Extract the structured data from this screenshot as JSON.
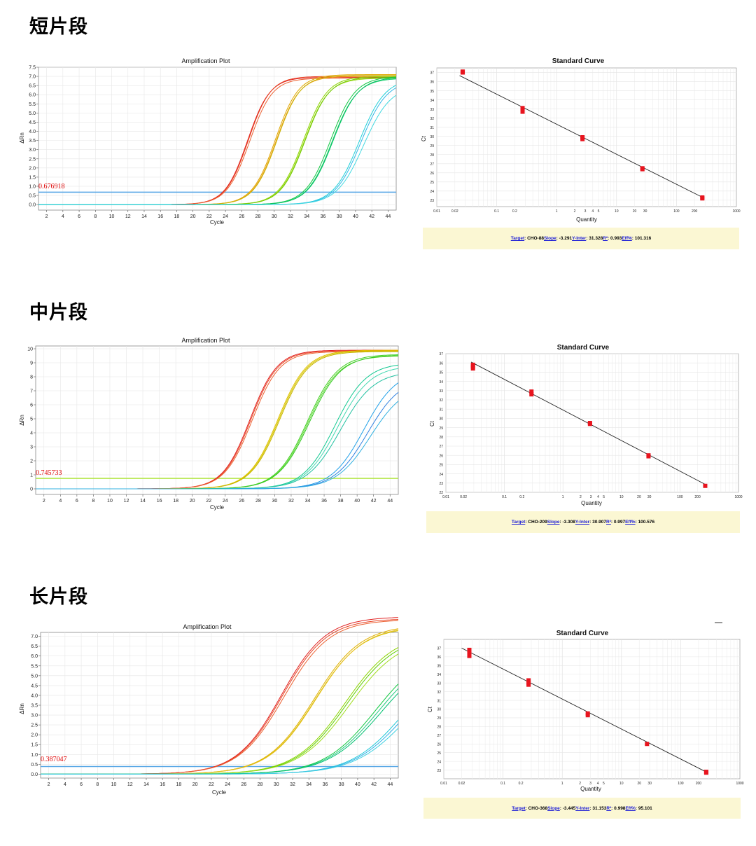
{
  "panels": [
    {
      "section_title": "短片段",
      "amp_title": "Amplification Plot",
      "amp_xlabel": "Cycle",
      "amp_ylabel": "ΔRn",
      "threshold_label": "0.676918",
      "std_title": "Standard Curve",
      "std_xlabel": "Quantity",
      "std_ylabel": "Ct",
      "stats": {
        "target_label": "Target",
        "target": "CHO-88",
        "slope_label": "Slope",
        "slope": "-3.291",
        "yinter_label": "Y-Inter",
        "yinter": "31.328",
        "r2_label": "R²",
        "r2": "0.993",
        "eff_label": "Eff%",
        "eff": "101.316"
      }
    },
    {
      "section_title": "中片段",
      "amp_title": "Amplification Plot",
      "amp_xlabel": "Cycle",
      "amp_ylabel": "ΔRn",
      "threshold_label": "0.745733",
      "std_title": "Standard Curve",
      "std_xlabel": "Quantity",
      "std_ylabel": "Ct",
      "stats": {
        "target_label": "Target",
        "target": "CHO-209",
        "slope_label": "Slope",
        "slope": "-3.308",
        "yinter_label": "Y-Inter",
        "yinter": "30.907",
        "r2_label": "R²",
        "r2": "0.997",
        "eff_label": "Eff%",
        "eff": "100.576"
      }
    },
    {
      "section_title": "长片段",
      "amp_title": "Amplification Plot",
      "amp_xlabel": "Cycle",
      "amp_ylabel": "ΔRn",
      "threshold_label": "0.387047",
      "std_title": "Standard Curve",
      "std_xlabel": "Quantity",
      "std_ylabel": "Ct",
      "stats": {
        "target_label": "Target",
        "target": "CHO-368",
        "slope_label": "Slope",
        "slope": "-3.445",
        "yinter_label": "Y-Inter",
        "yinter": "31.153",
        "r2_label": "R²",
        "r2": "0.998",
        "eff_label": "Eff%",
        "eff": "95.101"
      }
    }
  ],
  "chart_data": [
    {
      "type": "line",
      "title": "Amplification Plot",
      "xlabel": "Cycle",
      "ylabel": "ΔRn",
      "xlim": [
        1,
        45
      ],
      "ylim": [
        -0.3,
        7.5
      ],
      "xticks": [
        2,
        4,
        6,
        8,
        10,
        12,
        14,
        16,
        18,
        20,
        22,
        24,
        26,
        28,
        30,
        32,
        34,
        36,
        38,
        40,
        42,
        44
      ],
      "yticks": [
        0.0,
        0.5,
        1.0,
        1.5,
        2.0,
        2.5,
        3.0,
        3.5,
        4.0,
        4.5,
        5.0,
        5.5,
        6.0,
        6.5,
        7.0,
        7.5
      ],
      "ytick_decimals": 1,
      "threshold": 0.676918,
      "threshold_color": "#5aa8e6",
      "grid": true,
      "series": [
        {
          "color": "#e02020",
          "ct": 23.2,
          "slope": 2.5,
          "plateau": 6.95
        },
        {
          "color": "#e84020",
          "ct": 23.3,
          "slope": 2.5,
          "plateau": 7.0
        },
        {
          "color": "#ec6030",
          "ct": 23.4,
          "slope": 2.55,
          "plateau": 6.9
        },
        {
          "color": "#e0a800",
          "ct": 26.5,
          "slope": 2.6,
          "plateau": 7.1
        },
        {
          "color": "#f0a020",
          "ct": 26.6,
          "slope": 2.6,
          "plateau": 7.0
        },
        {
          "color": "#c8b400",
          "ct": 26.7,
          "slope": 2.6,
          "plateau": 7.05
        },
        {
          "color": "#8cd400",
          "ct": 29.8,
          "slope": 2.7,
          "plateau": 7.0
        },
        {
          "color": "#a0dc20",
          "ct": 29.9,
          "slope": 2.7,
          "plateau": 6.9
        },
        {
          "color": "#70c800",
          "ct": 30.0,
          "slope": 2.7,
          "plateau": 6.95
        },
        {
          "color": "#10c840",
          "ct": 33.0,
          "slope": 2.8,
          "plateau": 7.0
        },
        {
          "color": "#20d070",
          "ct": 33.2,
          "slope": 2.8,
          "plateau": 6.9
        },
        {
          "color": "#00c060",
          "ct": 33.3,
          "slope": 2.8,
          "plateau": 6.95
        },
        {
          "color": "#20d0d8",
          "ct": 36.4,
          "slope": 2.9,
          "plateau": 6.9
        },
        {
          "color": "#30b8e8",
          "ct": 36.6,
          "slope": 2.9,
          "plateau": 6.8
        },
        {
          "color": "#40d8e0",
          "ct": 36.8,
          "slope": 3.0,
          "plateau": 6.5
        }
      ]
    },
    {
      "type": "scatter",
      "title": "Standard Curve",
      "xlabel": "Quantity",
      "ylabel": "Ct",
      "xscale": "log",
      "xlim": [
        0.01,
        1000
      ],
      "ylim": [
        22.3,
        37.5
      ],
      "xtick_labels": [
        "0.01",
        "0.02",
        "0.1",
        "0.2",
        "1",
        "2",
        "3",
        "4",
        "5",
        "10",
        "20",
        "30",
        "100",
        "200",
        "1000"
      ],
      "xtick_values": [
        0.01,
        0.02,
        0.1,
        0.2,
        1,
        2,
        3,
        4,
        5,
        10,
        20,
        30,
        100,
        200,
        1000
      ],
      "yticks": [
        23,
        24,
        25,
        26,
        27,
        28,
        29,
        30,
        31,
        32,
        33,
        34,
        35,
        36,
        37
      ],
      "fit": {
        "slope": -3.291,
        "intercept": 31.328,
        "x_range": [
          0.024,
          270
        ]
      },
      "points": [
        {
          "x": 0.027,
          "y": 37.0
        },
        {
          "x": 0.027,
          "y": 37.1
        },
        {
          "x": 0.27,
          "y": 33.0
        },
        {
          "x": 0.27,
          "y": 32.7
        },
        {
          "x": 0.27,
          "y": 33.1
        },
        {
          "x": 2.7,
          "y": 29.7
        },
        {
          "x": 2.7,
          "y": 29.9
        },
        {
          "x": 27,
          "y": 26.4
        },
        {
          "x": 27,
          "y": 26.5
        },
        {
          "x": 270,
          "y": 23.2
        },
        {
          "x": 270,
          "y": 23.3
        }
      ]
    },
    {
      "type": "line",
      "title": "Amplification Plot",
      "xlabel": "Cycle",
      "ylabel": "ΔRn",
      "xlim": [
        1,
        45
      ],
      "ylim": [
        -0.4,
        10.2
      ],
      "xticks": [
        2,
        4,
        6,
        8,
        10,
        12,
        14,
        16,
        18,
        20,
        22,
        24,
        26,
        28,
        30,
        32,
        34,
        36,
        38,
        40,
        42,
        44
      ],
      "yticks": [
        0,
        1,
        2,
        3,
        4,
        5,
        6,
        7,
        8,
        9,
        10
      ],
      "ytick_decimals": 0,
      "threshold": 0.745733,
      "threshold_color": "#b4e64a",
      "grid": true,
      "series": [
        {
          "color": "#e02020",
          "ct": 22.8,
          "slope": 3.0,
          "plateau": 9.9
        },
        {
          "color": "#e84020",
          "ct": 22.9,
          "slope": 3.0,
          "plateau": 9.85
        },
        {
          "color": "#ec6030",
          "ct": 23.0,
          "slope": 3.05,
          "plateau": 9.8
        },
        {
          "color": "#e0c000",
          "ct": 25.9,
          "slope": 3.2,
          "plateau": 9.9
        },
        {
          "color": "#d4c800",
          "ct": 26.0,
          "slope": 3.2,
          "plateau": 9.85
        },
        {
          "color": "#c8b400",
          "ct": 26.1,
          "slope": 3.2,
          "plateau": 9.8
        },
        {
          "color": "#40d020",
          "ct": 29.2,
          "slope": 3.4,
          "plateau": 9.6
        },
        {
          "color": "#60d830",
          "ct": 29.3,
          "slope": 3.4,
          "plateau": 9.5
        },
        {
          "color": "#30c820",
          "ct": 29.4,
          "slope": 3.45,
          "plateau": 9.55
        },
        {
          "color": "#10c890",
          "ct": 32.4,
          "slope": 3.5,
          "plateau": 9.0
        },
        {
          "color": "#40d8b0",
          "ct": 32.6,
          "slope": 3.6,
          "plateau": 8.8
        },
        {
          "color": "#20c0a0",
          "ct": 32.8,
          "slope": 3.7,
          "plateau": 8.4
        },
        {
          "color": "#20a0e8",
          "ct": 35.8,
          "slope": 3.6,
          "plateau": 8.5
        },
        {
          "color": "#3080e0",
          "ct": 36.1,
          "slope": 3.7,
          "plateau": 8.0
        },
        {
          "color": "#30b0e0",
          "ct": 36.3,
          "slope": 3.8,
          "plateau": 7.5
        }
      ]
    },
    {
      "type": "scatter",
      "title": "Standard Curve",
      "xlabel": "Quantity",
      "ylabel": "Ct",
      "xscale": "log",
      "xlim": [
        0.01,
        1000
      ],
      "ylim": [
        22,
        37
      ],
      "xtick_labels": [
        "0.01",
        "0.02",
        "0.1",
        "0.2",
        "1",
        "2",
        "3",
        "4",
        "5",
        "10",
        "20",
        "30",
        "100",
        "200",
        "1000"
      ],
      "xtick_values": [
        0.01,
        0.02,
        0.1,
        0.2,
        1,
        2,
        3,
        4,
        5,
        10,
        20,
        30,
        100,
        200,
        1000
      ],
      "yticks": [
        22,
        23,
        24,
        25,
        26,
        27,
        28,
        29,
        30,
        31,
        32,
        33,
        34,
        35,
        36,
        37
      ],
      "fit": {
        "slope": -3.308,
        "intercept": 30.907,
        "x_range": [
          0.027,
          270
        ]
      },
      "points": [
        {
          "x": 0.029,
          "y": 35.4
        },
        {
          "x": 0.029,
          "y": 35.6
        },
        {
          "x": 0.029,
          "y": 35.8
        },
        {
          "x": 0.29,
          "y": 32.6
        },
        {
          "x": 0.29,
          "y": 32.9
        },
        {
          "x": 2.9,
          "y": 29.4
        },
        {
          "x": 2.9,
          "y": 29.5
        },
        {
          "x": 29,
          "y": 25.9
        },
        {
          "x": 29,
          "y": 26.0
        },
        {
          "x": 270,
          "y": 22.7
        }
      ]
    },
    {
      "type": "line",
      "title": "Amplification Plot",
      "xlabel": "Cycle",
      "ylabel": "ΔRn",
      "xlim": [
        1,
        45
      ],
      "ylim": [
        -0.2,
        7.2
      ],
      "xticks": [
        2,
        4,
        6,
        8,
        10,
        12,
        14,
        16,
        18,
        20,
        22,
        24,
        26,
        28,
        30,
        32,
        34,
        36,
        38,
        40,
        42,
        44
      ],
      "yticks": [
        0.0,
        0.5,
        1.0,
        1.5,
        2.0,
        2.5,
        3.0,
        3.5,
        4.0,
        4.5,
        5.0,
        5.5,
        6.0,
        6.5,
        7.0
      ],
      "ytick_decimals": 1,
      "threshold": 0.387047,
      "threshold_color": "#5aa8e6",
      "grid": true,
      "series": [
        {
          "color": "#e02020",
          "ct": 23.6,
          "slope": 5.0,
          "plateau": 8.0
        },
        {
          "color": "#e84020",
          "ct": 23.7,
          "slope": 5.0,
          "plateau": 7.9
        },
        {
          "color": "#ec6030",
          "ct": 23.8,
          "slope": 5.1,
          "plateau": 7.85
        },
        {
          "color": "#e0b000",
          "ct": 27.2,
          "slope": 5.3,
          "plateau": 7.6
        },
        {
          "color": "#d4c000",
          "ct": 27.3,
          "slope": 5.3,
          "plateau": 7.5
        },
        {
          "color": "#e8c020",
          "ct": 27.4,
          "slope": 5.3,
          "plateau": 7.55
        },
        {
          "color": "#8cd400",
          "ct": 30.6,
          "slope": 5.6,
          "plateau": 7.2
        },
        {
          "color": "#60d000",
          "ct": 30.8,
          "slope": 5.6,
          "plateau": 7.1
        },
        {
          "color": "#a0dc20",
          "ct": 31.0,
          "slope": 5.7,
          "plateau": 7.0
        },
        {
          "color": "#10c840",
          "ct": 34.1,
          "slope": 5.8,
          "plateau": 6.5
        },
        {
          "color": "#20c880",
          "ct": 34.3,
          "slope": 5.9,
          "plateau": 6.4
        },
        {
          "color": "#00c070",
          "ct": 34.5,
          "slope": 6.0,
          "plateau": 6.3
        },
        {
          "color": "#20c8d8",
          "ct": 37.4,
          "slope": 5.8,
          "plateau": 6.0
        },
        {
          "color": "#30b0e8",
          "ct": 37.6,
          "slope": 5.9,
          "plateau": 5.9
        },
        {
          "color": "#40d0e0",
          "ct": 37.8,
          "slope": 6.0,
          "plateau": 5.7
        }
      ]
    },
    {
      "type": "scatter",
      "title": "Standard Curve",
      "xlabel": "Quantity",
      "ylabel": "Ct",
      "xscale": "log",
      "xlim": [
        0.01,
        1000
      ],
      "ylim": [
        22,
        38
      ],
      "xtick_labels": [
        "0.01",
        "0.02",
        "0.1",
        "0.2",
        "1",
        "2",
        "3",
        "4",
        "5",
        "10",
        "20",
        "30",
        "100",
        "200",
        "1000"
      ],
      "xtick_values": [
        0.01,
        0.02,
        0.1,
        0.2,
        1,
        2,
        3,
        4,
        5,
        10,
        20,
        30,
        100,
        200,
        1000
      ],
      "yticks": [
        23,
        24,
        25,
        26,
        27,
        28,
        29,
        30,
        31,
        32,
        33,
        34,
        35,
        36,
        37
      ],
      "fit": {
        "slope": -3.445,
        "intercept": 31.153,
        "x_range": [
          0.02,
          270
        ]
      },
      "points": [
        {
          "x": 0.027,
          "y": 36.8
        },
        {
          "x": 0.027,
          "y": 36.4
        },
        {
          "x": 0.027,
          "y": 36.1
        },
        {
          "x": 0.27,
          "y": 33.3
        },
        {
          "x": 0.27,
          "y": 33.0
        },
        {
          "x": 0.27,
          "y": 32.8
        },
        {
          "x": 2.7,
          "y": 29.5
        },
        {
          "x": 2.7,
          "y": 29.3
        },
        {
          "x": 27,
          "y": 26.0
        },
        {
          "x": 270,
          "y": 22.8
        },
        {
          "x": 270,
          "y": 22.7
        }
      ]
    }
  ]
}
